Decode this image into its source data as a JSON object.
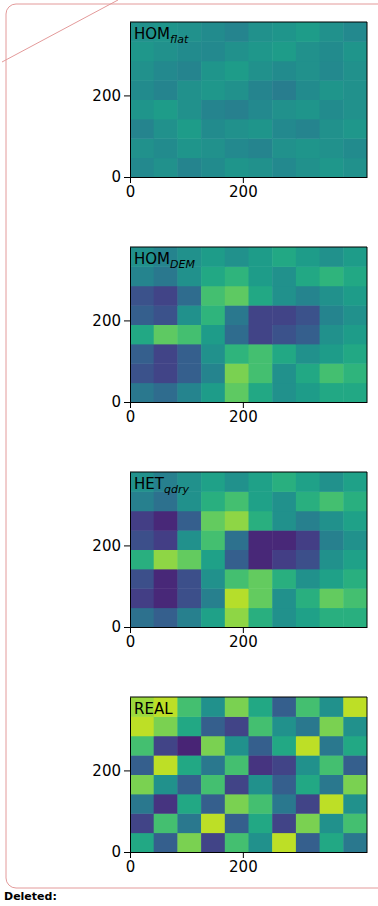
{
  "chart_data": [
    {
      "type": "heatmap",
      "title": "HOM",
      "subscript": "flat",
      "color": "viridis",
      "clim": [
        0,
        1
      ],
      "xlim": [
        0,
        420
      ],
      "ylim": [
        0,
        380
      ],
      "xticks": [
        0,
        200
      ],
      "yticks": [
        0,
        200
      ],
      "x_edges": [
        0,
        42,
        84,
        126,
        168,
        210,
        252,
        294,
        336,
        378,
        420
      ],
      "y_edges": [
        0,
        47.5,
        95,
        142.5,
        190,
        237.5,
        285,
        332.5,
        380
      ],
      "cells": [
        [
          0.47,
          0.5,
          0.45,
          0.48,
          0.52,
          0.5,
          0.47,
          0.5,
          0.53,
          0.5
        ],
        [
          0.5,
          0.48,
          0.52,
          0.5,
          0.47,
          0.45,
          0.5,
          0.52,
          0.5,
          0.48
        ],
        [
          0.45,
          0.5,
          0.55,
          0.48,
          0.5,
          0.52,
          0.47,
          0.45,
          0.5,
          0.53
        ],
        [
          0.52,
          0.55,
          0.5,
          0.45,
          0.43,
          0.47,
          0.5,
          0.52,
          0.48,
          0.5
        ],
        [
          0.48,
          0.45,
          0.5,
          0.53,
          0.5,
          0.45,
          0.42,
          0.48,
          0.52,
          0.5
        ],
        [
          0.5,
          0.47,
          0.45,
          0.52,
          0.55,
          0.5,
          0.48,
          0.5,
          0.47,
          0.5
        ],
        [
          0.53,
          0.5,
          0.48,
          0.47,
          0.5,
          0.53,
          0.55,
          0.5,
          0.48,
          0.52
        ],
        [
          0.5,
          0.52,
          0.5,
          0.48,
          0.45,
          0.5,
          0.52,
          0.55,
          0.5,
          0.47
        ]
      ]
    },
    {
      "type": "heatmap",
      "title": "HOM",
      "subscript": "DEM",
      "color": "viridis",
      "clim": [
        0,
        1
      ],
      "xlim": [
        0,
        420
      ],
      "ylim": [
        0,
        380
      ],
      "xticks": [
        0,
        200
      ],
      "yticks": [
        0,
        200
      ],
      "x_edges": [
        0,
        42,
        84,
        126,
        168,
        210,
        252,
        294,
        336,
        378,
        420
      ],
      "y_edges": [
        0,
        47.5,
        95,
        142.5,
        190,
        237.5,
        285,
        332.5,
        380
      ],
      "cells": [
        [
          0.4,
          0.35,
          0.45,
          0.55,
          0.75,
          0.6,
          0.5,
          0.55,
          0.6,
          0.6
        ],
        [
          0.25,
          0.2,
          0.3,
          0.45,
          0.8,
          0.7,
          0.5,
          0.6,
          0.7,
          0.65
        ],
        [
          0.3,
          0.2,
          0.3,
          0.5,
          0.65,
          0.7,
          0.6,
          0.5,
          0.55,
          0.6
        ],
        [
          0.6,
          0.75,
          0.7,
          0.55,
          0.35,
          0.2,
          0.25,
          0.3,
          0.5,
          0.55
        ],
        [
          0.3,
          0.25,
          0.5,
          0.65,
          0.4,
          0.2,
          0.2,
          0.25,
          0.45,
          0.5
        ],
        [
          0.25,
          0.2,
          0.35,
          0.7,
          0.75,
          0.6,
          0.5,
          0.45,
          0.5,
          0.55
        ],
        [
          0.45,
          0.4,
          0.5,
          0.6,
          0.65,
          0.55,
          0.5,
          0.6,
          0.65,
          0.6
        ],
        [
          0.5,
          0.45,
          0.5,
          0.55,
          0.5,
          0.55,
          0.6,
          0.55,
          0.5,
          0.55
        ]
      ]
    },
    {
      "type": "heatmap",
      "title": "HET",
      "subscript": "qdry",
      "color": "viridis",
      "clim": [
        0,
        1
      ],
      "xlim": [
        0,
        420
      ],
      "ylim": [
        0,
        380
      ],
      "xticks": [
        0,
        200
      ],
      "yticks": [
        0,
        200
      ],
      "x_edges": [
        0,
        42,
        84,
        126,
        168,
        210,
        252,
        294,
        336,
        378,
        420
      ],
      "y_edges": [
        0,
        47.5,
        95,
        142.5,
        190,
        237.5,
        285,
        332.5,
        380
      ],
      "cells": [
        [
          0.37,
          0.3,
          0.43,
          0.57,
          0.83,
          0.63,
          0.5,
          0.57,
          0.63,
          0.63
        ],
        [
          0.18,
          0.11,
          0.24,
          0.43,
          0.89,
          0.76,
          0.5,
          0.63,
          0.76,
          0.7
        ],
        [
          0.24,
          0.11,
          0.24,
          0.5,
          0.7,
          0.76,
          0.63,
          0.5,
          0.57,
          0.63
        ],
        [
          0.63,
          0.83,
          0.76,
          0.57,
          0.3,
          0.11,
          0.18,
          0.24,
          0.5,
          0.57
        ],
        [
          0.24,
          0.18,
          0.5,
          0.7,
          0.37,
          0.11,
          0.11,
          0.18,
          0.43,
          0.5
        ],
        [
          0.18,
          0.11,
          0.3,
          0.76,
          0.83,
          0.63,
          0.5,
          0.43,
          0.5,
          0.57
        ],
        [
          0.43,
          0.37,
          0.5,
          0.63,
          0.7,
          0.57,
          0.5,
          0.63,
          0.7,
          0.63
        ],
        [
          0.5,
          0.43,
          0.5,
          0.57,
          0.5,
          0.57,
          0.63,
          0.57,
          0.5,
          0.57
        ]
      ]
    },
    {
      "type": "heatmap",
      "title": "REAL",
      "color": "viridis",
      "clim": [
        0,
        1
      ],
      "xlim": [
        0,
        420
      ],
      "ylim": [
        0,
        380
      ],
      "xticks": [
        0,
        200
      ],
      "yticks": [
        0,
        200
      ],
      "x_edges": [
        0,
        42,
        84,
        126,
        168,
        210,
        252,
        294,
        336,
        378,
        420
      ],
      "y_edges": [
        0,
        47.5,
        95,
        142.5,
        190,
        237.5,
        285,
        332.5,
        380
      ],
      "cells": [
        [
          0.6,
          0.3,
          0.8,
          0.2,
          0.7,
          0.5,
          0.9,
          0.3,
          0.6,
          0.4
        ],
        [
          0.2,
          0.7,
          0.4,
          0.9,
          0.3,
          0.6,
          0.2,
          0.8,
          0.5,
          0.7
        ],
        [
          0.4,
          0.15,
          0.6,
          0.3,
          0.8,
          0.7,
          0.4,
          0.2,
          0.9,
          0.5
        ],
        [
          0.8,
          0.5,
          0.3,
          0.7,
          0.2,
          0.5,
          0.3,
          0.6,
          0.4,
          0.8
        ],
        [
          0.3,
          0.9,
          0.6,
          0.4,
          0.7,
          0.15,
          0.2,
          0.5,
          0.7,
          0.3
        ],
        [
          0.7,
          0.2,
          0.1,
          0.8,
          0.5,
          0.3,
          0.6,
          0.9,
          0.4,
          0.6
        ],
        [
          0.9,
          0.8,
          0.6,
          0.3,
          0.2,
          0.7,
          0.5,
          0.4,
          0.8,
          0.5
        ],
        [
          0.85,
          0.9,
          0.7,
          0.5,
          0.8,
          0.6,
          0.3,
          0.7,
          0.5,
          0.9
        ]
      ]
    }
  ],
  "markup_label": "Deleted:"
}
